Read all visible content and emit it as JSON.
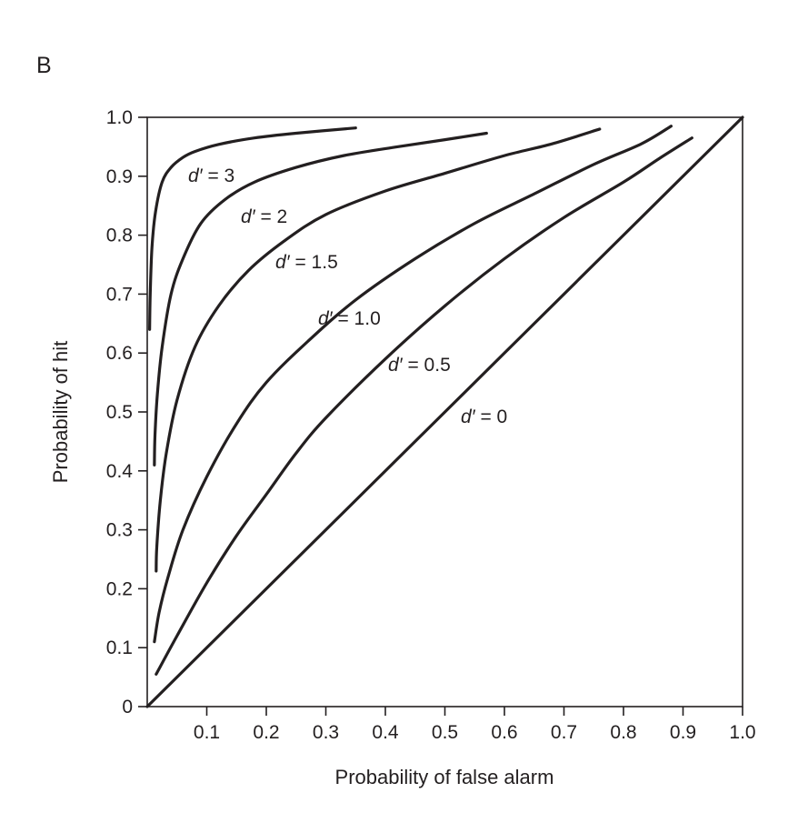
{
  "panel_label": "B",
  "chart_data": {
    "type": "line",
    "title": "",
    "xlabel": "Probability of false alarm",
    "ylabel": "Probability of hit",
    "xlim": [
      0,
      1
    ],
    "ylim": [
      0,
      1
    ],
    "grid": false,
    "legend": "none",
    "x_ticks": [
      "0.1",
      "0.2",
      "0.3",
      "0.4",
      "0.5",
      "0.6",
      "0.7",
      "0.8",
      "0.9",
      "1.0"
    ],
    "y_ticks": [
      "0",
      "0.1",
      "0.2",
      "0.3",
      "0.4",
      "0.5",
      "0.6",
      "0.7",
      "0.8",
      "0.9",
      "1.0"
    ],
    "series": [
      {
        "d_prime": 3,
        "label_prefix": "d′",
        "label_suffix": " = 3",
        "points": [
          [
            0.004,
            0.64
          ],
          [
            0.005,
            0.7
          ],
          [
            0.008,
            0.78
          ],
          [
            0.014,
            0.84
          ],
          [
            0.025,
            0.89
          ],
          [
            0.04,
            0.915
          ],
          [
            0.06,
            0.932
          ],
          [
            0.08,
            0.942
          ],
          [
            0.12,
            0.954
          ],
          [
            0.18,
            0.965
          ],
          [
            0.25,
            0.973
          ],
          [
            0.35,
            0.982
          ]
        ]
      },
      {
        "d_prime": 2,
        "label_prefix": "d′",
        "label_suffix": " = 2",
        "points": [
          [
            0.012,
            0.41
          ],
          [
            0.013,
            0.46
          ],
          [
            0.017,
            0.53
          ],
          [
            0.025,
            0.61
          ],
          [
            0.04,
            0.7
          ],
          [
            0.06,
            0.76
          ],
          [
            0.09,
            0.82
          ],
          [
            0.13,
            0.86
          ],
          [
            0.18,
            0.89
          ],
          [
            0.25,
            0.915
          ],
          [
            0.33,
            0.935
          ],
          [
            0.42,
            0.95
          ],
          [
            0.5,
            0.962
          ],
          [
            0.57,
            0.973
          ]
        ]
      },
      {
        "d_prime": 1.5,
        "label_prefix": "d′",
        "label_suffix": " = 1.5",
        "points": [
          [
            0.015,
            0.23
          ],
          [
            0.016,
            0.27
          ],
          [
            0.022,
            0.35
          ],
          [
            0.032,
            0.43
          ],
          [
            0.05,
            0.52
          ],
          [
            0.08,
            0.61
          ],
          [
            0.12,
            0.68
          ],
          [
            0.17,
            0.74
          ],
          [
            0.23,
            0.79
          ],
          [
            0.3,
            0.835
          ],
          [
            0.4,
            0.875
          ],
          [
            0.5,
            0.905
          ],
          [
            0.6,
            0.935
          ],
          [
            0.68,
            0.955
          ],
          [
            0.76,
            0.98
          ]
        ]
      },
      {
        "d_prime": 1.0,
        "label_prefix": "d′",
        "label_suffix": " = 1.0",
        "points": [
          [
            0.012,
            0.11
          ],
          [
            0.02,
            0.16
          ],
          [
            0.035,
            0.22
          ],
          [
            0.06,
            0.3
          ],
          [
            0.1,
            0.39
          ],
          [
            0.15,
            0.48
          ],
          [
            0.2,
            0.55
          ],
          [
            0.27,
            0.62
          ],
          [
            0.35,
            0.69
          ],
          [
            0.45,
            0.76
          ],
          [
            0.55,
            0.82
          ],
          [
            0.65,
            0.87
          ],
          [
            0.75,
            0.92
          ],
          [
            0.83,
            0.955
          ],
          [
            0.88,
            0.985
          ]
        ]
      },
      {
        "d_prime": 0.5,
        "label_prefix": "d′",
        "label_suffix": " = 0.5",
        "points": [
          [
            0.015,
            0.055
          ],
          [
            0.05,
            0.12
          ],
          [
            0.1,
            0.21
          ],
          [
            0.15,
            0.29
          ],
          [
            0.2,
            0.36
          ],
          [
            0.25,
            0.43
          ],
          [
            0.3,
            0.49
          ],
          [
            0.4,
            0.59
          ],
          [
            0.5,
            0.68
          ],
          [
            0.6,
            0.76
          ],
          [
            0.7,
            0.83
          ],
          [
            0.8,
            0.89
          ],
          [
            0.86,
            0.93
          ],
          [
            0.915,
            0.965
          ]
        ]
      },
      {
        "d_prime": 0,
        "label_prefix": "d′",
        "label_suffix": " = 0",
        "points": [
          [
            0,
            0
          ],
          [
            1,
            1
          ]
        ]
      }
    ]
  }
}
